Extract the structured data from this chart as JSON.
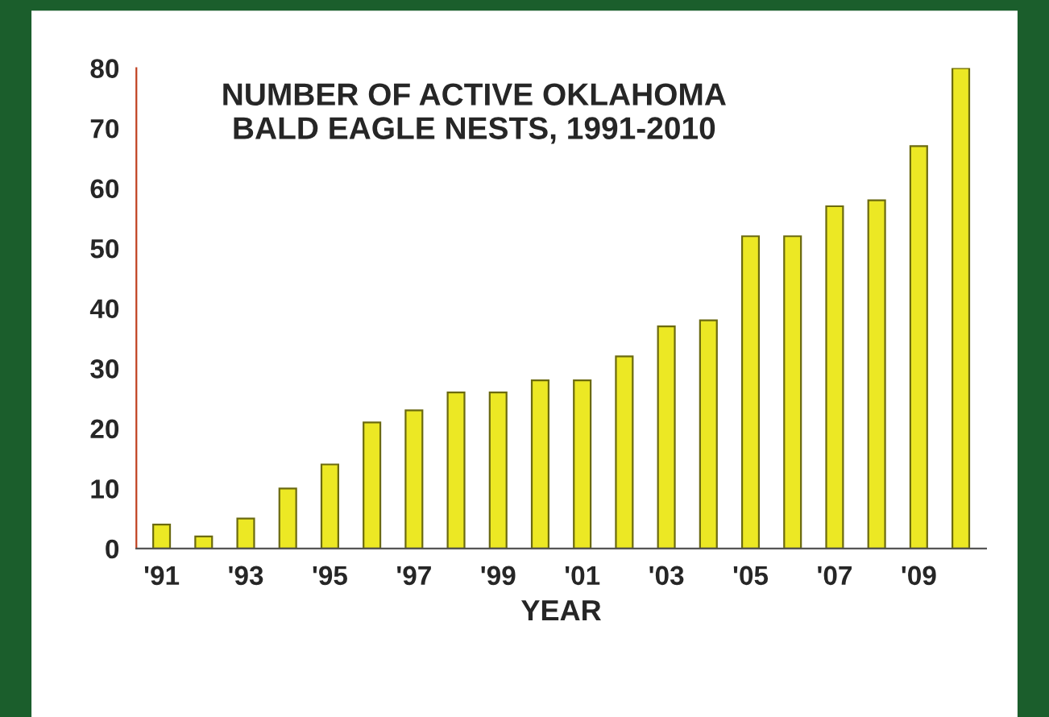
{
  "chart_data": {
    "type": "bar",
    "title": "NUMBER OF ACTIVE OKLAHOMA\nBALD EAGLE NESTS, 1991-2010",
    "xlabel": "YEAR",
    "categories": [
      "'91",
      null,
      "'93",
      null,
      "'95",
      null,
      "'97",
      null,
      "'99",
      null,
      "'01",
      null,
      "'03",
      null,
      "'05",
      null,
      "'07",
      null,
      "'09",
      null
    ],
    "values": [
      4,
      2,
      5,
      10,
      14,
      21,
      23,
      26,
      26,
      28,
      28,
      32,
      37,
      38,
      52,
      52,
      57,
      58,
      67,
      80
    ],
    "color": "#ece824",
    "ylim": [
      0,
      80
    ],
    "yticks": [
      0,
      10,
      20,
      30,
      40,
      50,
      60,
      70,
      80
    ],
    "grid": false,
    "legend": false
  }
}
